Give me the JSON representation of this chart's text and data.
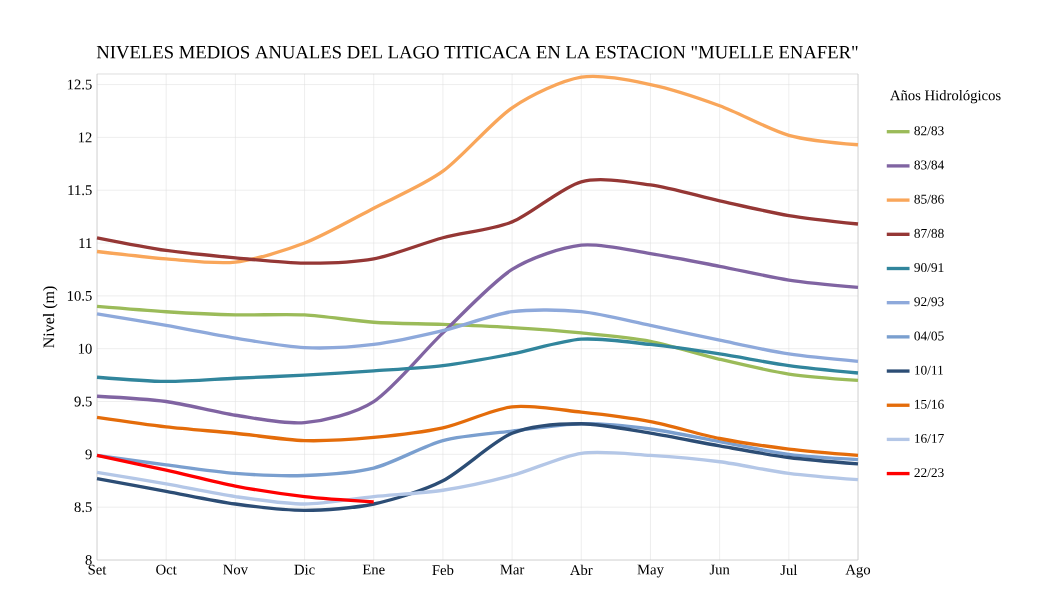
{
  "chart_data": {
    "type": "line",
    "title": "NIVELES MEDIOS ANUALES DEL LAGO TITICACA EN LA ESTACION  \"MUELLE ENAFER\"",
    "ylabel": "Nivel (m)",
    "legend_title": "Años Hidrológicos",
    "categories": [
      "Set",
      "Oct",
      "Nov",
      "Dic",
      "Ene",
      "Feb",
      "Mar",
      "Abr",
      "May",
      "Jun",
      "Jul",
      "Ago"
    ],
    "series": [
      {
        "name": "82/83",
        "color": "#9bbb59",
        "values": [
          10.4,
          10.35,
          10.32,
          10.32,
          10.25,
          10.23,
          10.2,
          10.15,
          10.07,
          9.9,
          9.76,
          9.7
        ]
      },
      {
        "name": "83/84",
        "color": "#8064a2",
        "values": [
          9.55,
          9.5,
          9.37,
          9.3,
          9.5,
          10.15,
          10.75,
          10.98,
          10.9,
          10.78,
          10.65,
          10.58
        ]
      },
      {
        "name": "85/86",
        "color": "#f9a65a",
        "values": [
          10.92,
          10.85,
          10.82,
          11.0,
          11.33,
          11.68,
          12.28,
          12.57,
          12.5,
          12.3,
          12.02,
          11.93
        ]
      },
      {
        "name": "87/88",
        "color": "#953735",
        "values": [
          11.05,
          10.93,
          10.86,
          10.81,
          10.85,
          11.05,
          11.2,
          11.58,
          11.55,
          11.4,
          11.26,
          11.18
        ]
      },
      {
        "name": "90/91",
        "color": "#31859c",
        "values": [
          9.73,
          9.69,
          9.72,
          9.75,
          9.79,
          9.84,
          9.95,
          10.09,
          10.04,
          9.95,
          9.84,
          9.77
        ]
      },
      {
        "name": "92/93",
        "color": "#8ea9db",
        "values": [
          10.33,
          10.22,
          10.1,
          10.01,
          10.04,
          10.17,
          10.35,
          10.35,
          10.22,
          10.08,
          9.95,
          9.88
        ]
      },
      {
        "name": "04/05",
        "color": "#7a9fcf",
        "values": [
          8.99,
          8.9,
          8.82,
          8.8,
          8.87,
          9.13,
          9.22,
          9.29,
          9.24,
          9.12,
          9.0,
          8.95
        ]
      },
      {
        "name": "10/11",
        "color": "#2c4d75",
        "values": [
          8.77,
          8.65,
          8.53,
          8.47,
          8.53,
          8.75,
          9.2,
          9.29,
          9.2,
          9.08,
          8.97,
          8.91
        ]
      },
      {
        "name": "15/16",
        "color": "#e46c0a",
        "values": [
          9.35,
          9.26,
          9.2,
          9.13,
          9.16,
          9.25,
          9.45,
          9.4,
          9.31,
          9.15,
          9.05,
          8.99
        ]
      },
      {
        "name": "16/17",
        "color": "#b4c7e7",
        "values": [
          8.83,
          8.72,
          8.6,
          8.53,
          8.6,
          8.66,
          8.8,
          9.01,
          8.99,
          8.93,
          8.82,
          8.76
        ]
      },
      {
        "name": "22/23",
        "color": "#ff0000",
        "values": [
          8.99,
          8.85,
          8.7,
          8.6,
          8.55,
          null,
          null,
          null,
          null,
          null,
          null,
          null
        ]
      }
    ],
    "ylim": [
      8,
      12.6
    ],
    "yticks": [
      8,
      8.5,
      9,
      9.5,
      10,
      10.5,
      11,
      11.5,
      12,
      12.5
    ],
    "grid": true,
    "legend": "right",
    "marker": "none",
    "line_style": "solid"
  }
}
